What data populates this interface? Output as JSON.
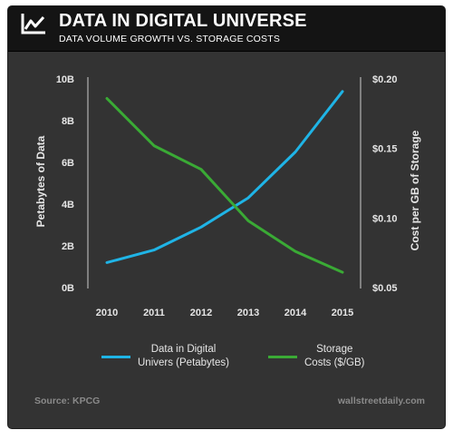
{
  "header": {
    "title": "DATA IN DIGITAL UNIVERSE",
    "subtitle": "DATA VOLUME GROWTH VS. STORAGE COSTS",
    "logo_icon": "line-chart-icon"
  },
  "colors": {
    "blue_series": "#1fb4e6",
    "green_series": "#3aaa35",
    "background": "#333333",
    "header_bg": "#141414",
    "axis_text": "#e6e6e6",
    "footer_text": "#8a8a8a"
  },
  "chart_data": {
    "type": "line",
    "title": "DATA IN DIGITAL UNIVERSE",
    "subtitle": "DATA VOLUME GROWTH VS. STORAGE COSTS",
    "x": [
      "2010",
      "2011",
      "2012",
      "2013",
      "2014",
      "2015"
    ],
    "ylabel": "Petabytes of Data",
    "ylim": [
      0,
      10
    ],
    "y_ticks": [
      "0B",
      "2B",
      "4B",
      "6B",
      "8B",
      "10B"
    ],
    "y2label": "Cost per GB of Storage",
    "y2lim": [
      0.05,
      0.2
    ],
    "y2_ticks": [
      "$0.05",
      "$0.10",
      "$0.15",
      "$0.20"
    ],
    "grid": false,
    "legend_position": "bottom",
    "series": [
      {
        "name": "Data in Digital Univers (Petabytes)",
        "axis": "left",
        "color": "#1fb4e6",
        "values": [
          1.2,
          1.8,
          2.9,
          4.3,
          6.5,
          9.4
        ]
      },
      {
        "name": "Storage Costs ($/GB)",
        "axis": "right",
        "color": "#3aaa35",
        "values": [
          0.186,
          0.152,
          0.135,
          0.098,
          0.076,
          0.061
        ]
      }
    ]
  },
  "legend": {
    "blue_line1": "Data in Digital",
    "blue_line2": "Univers (Petabytes)",
    "green_line1": "Storage",
    "green_line2": "Costs ($/GB)"
  },
  "footer": {
    "source": "Source: KPCG",
    "credit": "wallstreetdaily.com"
  }
}
